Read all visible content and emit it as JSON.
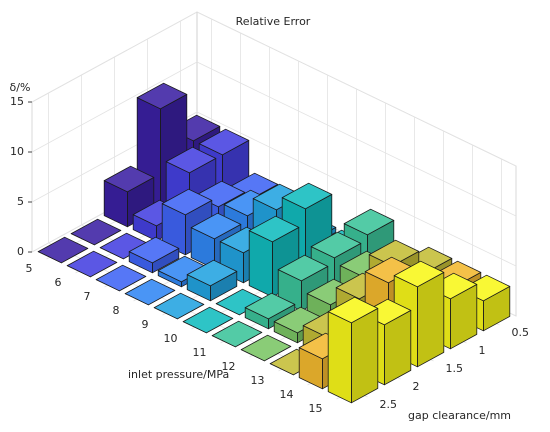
{
  "chart_data": {
    "type": "bar3",
    "title": "Relative Error",
    "zlabel": "δ/%",
    "xlabel": "inlet pressure/MPa",
    "ylabel": "gap clearance/mm",
    "x": [
      5,
      6,
      7,
      8,
      9,
      10,
      11,
      12,
      13,
      14,
      15
    ],
    "y": [
      0.5,
      1,
      1.5,
      2,
      2.5
    ],
    "values": [
      [
        5,
        10,
        3.5,
        0,
        0
      ],
      [
        5,
        5,
        1.5,
        0,
        0
      ],
      [
        2,
        3,
        4,
        1,
        0
      ],
      [
        2,
        3.5,
        3,
        0.5,
        0
      ],
      [
        0.5,
        5.5,
        3,
        1.5,
        0
      ],
      [
        0.5,
        7,
        5.5,
        0,
        0
      ],
      [
        4,
        3.5,
        3,
        1,
        0
      ],
      [
        2,
        3,
        2,
        1,
        0
      ],
      [
        3,
        5.5,
        4,
        2,
        0
      ],
      [
        3,
        4,
        7,
        4,
        3
      ],
      [
        3,
        5,
        8,
        6,
        8
      ]
    ],
    "colors": [
      "#3b20a3",
      "#4540e0",
      "#3f64f5",
      "#3187f4",
      "#22a3e0",
      "#12bcbe",
      "#3cc49a",
      "#7ac564",
      "#c4bd36",
      "#f3b92f",
      "#f8f71a"
    ],
    "zlim": [
      0,
      15
    ],
    "zticks": [
      0,
      5,
      10,
      15
    ],
    "grid": true
  }
}
